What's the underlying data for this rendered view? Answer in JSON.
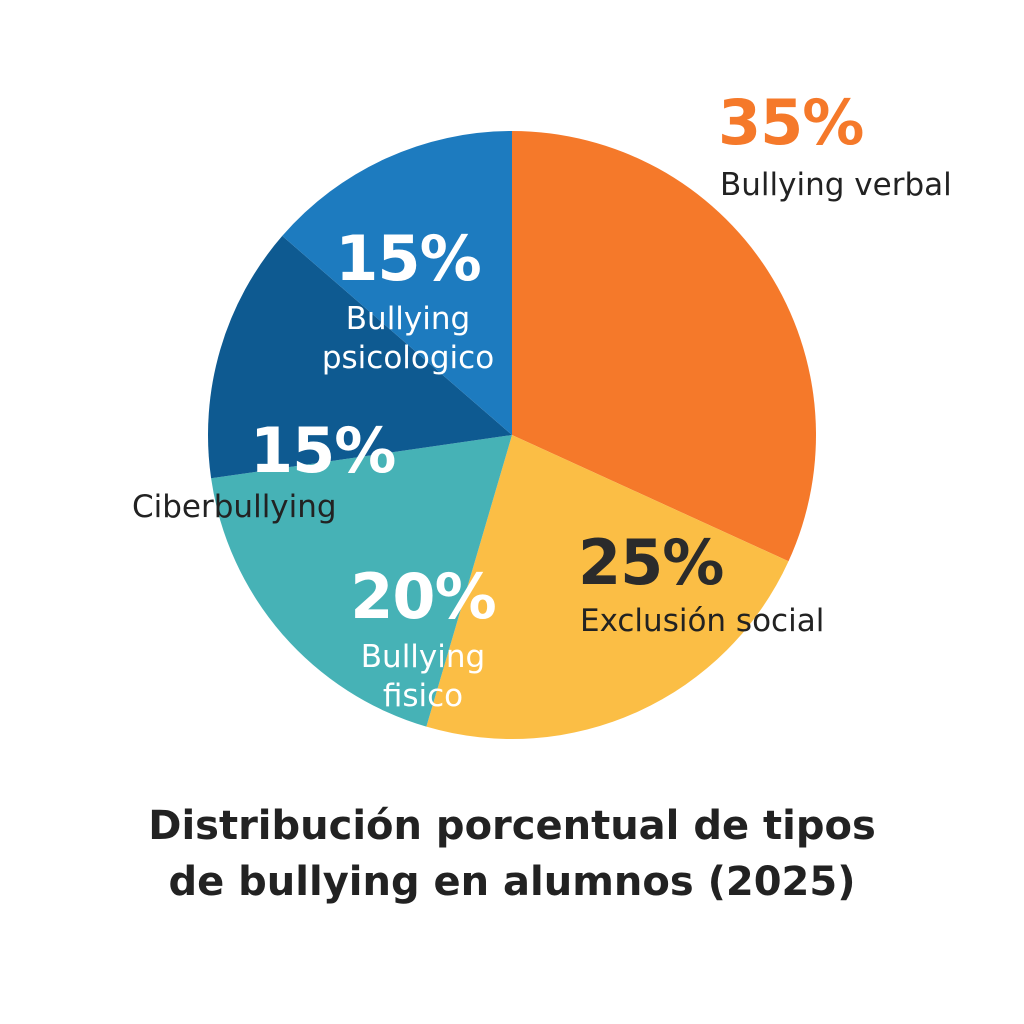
{
  "chart_data": {
    "type": "pie",
    "title": "Distribución porcentual de tipos de bullying en alumnos (2025)",
    "title_lines": [
      "Distribución porcentual de tipos",
      "de bullying en alumnos (2025)"
    ],
    "slices": [
      {
        "label": "Bullying verbal",
        "label_lines": [
          "Bullying verbal"
        ],
        "value": 35,
        "value_label": "35%",
        "color": "#F5792A"
      },
      {
        "label": "Exclusión social",
        "label_lines": [
          "Exclusión social"
        ],
        "value": 25,
        "value_label": "25%",
        "color": "#FBBE45"
      },
      {
        "label": "Bullying fisico",
        "label_lines": [
          "Bullying",
          "fisico"
        ],
        "value": 20,
        "value_label": "20%",
        "color": "#46B2B6"
      },
      {
        "label": "Ciberbullying",
        "label_lines": [
          "Ciberbullying"
        ],
        "value": 15,
        "value_label": "15%",
        "color": "#0E5A91"
      },
      {
        "label": "Bullying psicologico",
        "label_lines": [
          "Bullying",
          "psicologico"
        ],
        "value": 15,
        "value_label": "15%",
        "color": "#1D7BBF"
      }
    ]
  }
}
